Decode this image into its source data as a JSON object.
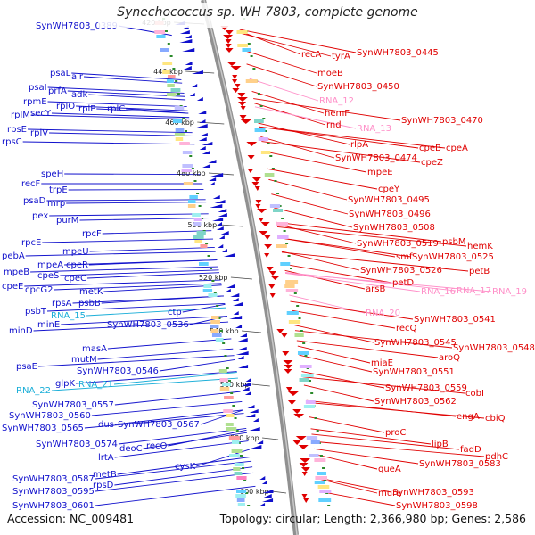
{
  "title": "Synechococcus sp. WH 7803, complete genome",
  "footer": {
    "accession": "Accession: NC_009481",
    "summary": "Topology: circular; Length: 2,366,980 bp; Genes: 2,586"
  },
  "colors": {
    "left_strand": "#1010cc",
    "right_strand": "#e00000",
    "rna": "#1aaed8",
    "rna_right": "#ff8fc8",
    "backbone": "#909090",
    "tick_marks": "#2a8a2a"
  },
  "ticks": [
    "420 kbp",
    "440 kbp",
    "460 kbp",
    "480 kbp",
    "500 kbp",
    "520 kbp",
    "540 kbp",
    "560 kbp",
    "580 kbp",
    "600 kbp"
  ],
  "left_labels": [
    {
      "text": "SynWH7803_0389",
      "kind": "gene"
    },
    {
      "text": "psaL",
      "kind": "gene"
    },
    {
      "text": "alr",
      "kind": "gene"
    },
    {
      "text": "psaI",
      "kind": "gene"
    },
    {
      "text": "prfA",
      "kind": "gene"
    },
    {
      "text": "rpmE",
      "kind": "gene"
    },
    {
      "text": "adk",
      "kind": "gene"
    },
    {
      "text": "rplM",
      "kind": "gene"
    },
    {
      "text": "secY",
      "kind": "gene"
    },
    {
      "text": "rplO",
      "kind": "gene"
    },
    {
      "text": "rpsE",
      "kind": "gene"
    },
    {
      "text": "rplP",
      "kind": "gene"
    },
    {
      "text": "rplC",
      "kind": "gene"
    },
    {
      "text": "rplV",
      "kind": "gene"
    },
    {
      "text": "rpsC",
      "kind": "gene"
    },
    {
      "text": "speH",
      "kind": "gene"
    },
    {
      "text": "recF",
      "kind": "gene"
    },
    {
      "text": "trpE",
      "kind": "gene"
    },
    {
      "text": "psaD",
      "kind": "gene"
    },
    {
      "text": "mrp",
      "kind": "gene"
    },
    {
      "text": "pex",
      "kind": "gene"
    },
    {
      "text": "purM",
      "kind": "gene"
    },
    {
      "text": "rpcF",
      "kind": "gene"
    },
    {
      "text": "rpcE",
      "kind": "gene"
    },
    {
      "text": "mpeU",
      "kind": "gene"
    },
    {
      "text": "pebA",
      "kind": "gene"
    },
    {
      "text": "mpeA",
      "kind": "gene"
    },
    {
      "text": "cpeR",
      "kind": "gene"
    },
    {
      "text": "mpeB",
      "kind": "gene"
    },
    {
      "text": "cpeS",
      "kind": "gene"
    },
    {
      "text": "cpeC",
      "kind": "gene"
    },
    {
      "text": "cpeE",
      "kind": "gene"
    },
    {
      "text": "cpcG2",
      "kind": "gene"
    },
    {
      "text": "metK",
      "kind": "gene"
    },
    {
      "text": "rpsA",
      "kind": "gene"
    },
    {
      "text": "psbB",
      "kind": "gene"
    },
    {
      "text": "psbT",
      "kind": "gene"
    },
    {
      "text": "RNA_15",
      "kind": "rna"
    },
    {
      "text": "ctp",
      "kind": "gene"
    },
    {
      "text": "minE",
      "kind": "gene"
    },
    {
      "text": "SynWH7803_0536",
      "kind": "gene"
    },
    {
      "text": "minD",
      "kind": "gene"
    },
    {
      "text": "masA",
      "kind": "gene"
    },
    {
      "text": "mutM",
      "kind": "gene"
    },
    {
      "text": "psaE",
      "kind": "gene"
    },
    {
      "text": "SynWH7803_0546",
      "kind": "gene"
    },
    {
      "text": "glpK",
      "kind": "gene"
    },
    {
      "text": "RNA_21",
      "kind": "rna"
    },
    {
      "text": "RNA_22",
      "kind": "rna"
    },
    {
      "text": "SynWH7803_0557",
      "kind": "gene"
    },
    {
      "text": "SynWH7803_0560",
      "kind": "gene"
    },
    {
      "text": "dus",
      "kind": "gene"
    },
    {
      "text": "SynWH7803_0567",
      "kind": "gene"
    },
    {
      "text": "SynWH7803_0565",
      "kind": "gene"
    },
    {
      "text": "SynWH7803_0574",
      "kind": "gene"
    },
    {
      "text": "deoC",
      "kind": "gene"
    },
    {
      "text": "recO",
      "kind": "gene"
    },
    {
      "text": "lrtA",
      "kind": "gene"
    },
    {
      "text": "cysK",
      "kind": "gene"
    },
    {
      "text": "metB",
      "kind": "gene"
    },
    {
      "text": "SynWH7803_0587",
      "kind": "gene"
    },
    {
      "text": "rpsD",
      "kind": "gene"
    },
    {
      "text": "SynWH7803_0595",
      "kind": "gene"
    },
    {
      "text": "SynWH7803_0601",
      "kind": "gene"
    }
  ],
  "right_labels": [
    {
      "text": "recA",
      "kind": "gene"
    },
    {
      "text": "tyrA",
      "kind": "gene"
    },
    {
      "text": "SynWH7803_0445",
      "kind": "gene"
    },
    {
      "text": "moeB",
      "kind": "gene"
    },
    {
      "text": "SynWH7803_0450",
      "kind": "gene"
    },
    {
      "text": "RNA_12",
      "kind": "rna"
    },
    {
      "text": "hemF",
      "kind": "gene"
    },
    {
      "text": "rnd",
      "kind": "gene"
    },
    {
      "text": "RNA_13",
      "kind": "rna"
    },
    {
      "text": "SynWH7803_0470",
      "kind": "gene"
    },
    {
      "text": "rlpA",
      "kind": "gene"
    },
    {
      "text": "cpeB",
      "kind": "gene"
    },
    {
      "text": "cpeA",
      "kind": "gene"
    },
    {
      "text": "SynWH7803_0474",
      "kind": "gene"
    },
    {
      "text": "cpeZ",
      "kind": "gene"
    },
    {
      "text": "mpeE",
      "kind": "gene"
    },
    {
      "text": "cpeY",
      "kind": "gene"
    },
    {
      "text": "SynWH7803_0495",
      "kind": "gene"
    },
    {
      "text": "SynWH7803_0496",
      "kind": "gene"
    },
    {
      "text": "SynWH7803_0508",
      "kind": "gene"
    },
    {
      "text": "SynWH7803_0519",
      "kind": "gene"
    },
    {
      "text": "psbM",
      "kind": "gene"
    },
    {
      "text": "hemK",
      "kind": "gene"
    },
    {
      "text": "smf",
      "kind": "gene"
    },
    {
      "text": "SynWH7803_0525",
      "kind": "gene"
    },
    {
      "text": "SynWH7803_0526",
      "kind": "gene"
    },
    {
      "text": "petB",
      "kind": "gene"
    },
    {
      "text": "petD",
      "kind": "gene"
    },
    {
      "text": "arsB",
      "kind": "gene"
    },
    {
      "text": "RNA_16",
      "kind": "rna"
    },
    {
      "text": "RNA_17",
      "kind": "rna"
    },
    {
      "text": "RNA_19",
      "kind": "rna"
    },
    {
      "text": "RNA_20",
      "kind": "rna"
    },
    {
      "text": "SynWH7803_0541",
      "kind": "gene"
    },
    {
      "text": "recQ",
      "kind": "gene"
    },
    {
      "text": "SynWH7803_0545",
      "kind": "gene"
    },
    {
      "text": "SynWH7803_0548",
      "kind": "gene"
    },
    {
      "text": "aroQ",
      "kind": "gene"
    },
    {
      "text": "miaE",
      "kind": "gene"
    },
    {
      "text": "SynWH7803_0551",
      "kind": "gene"
    },
    {
      "text": "SynWH7803_0559",
      "kind": "gene"
    },
    {
      "text": "cobI",
      "kind": "gene"
    },
    {
      "text": "SynWH7803_0562",
      "kind": "gene"
    },
    {
      "text": "engA",
      "kind": "gene"
    },
    {
      "text": "cbiQ",
      "kind": "gene"
    },
    {
      "text": "proC",
      "kind": "gene"
    },
    {
      "text": "lipB",
      "kind": "gene"
    },
    {
      "text": "fadD",
      "kind": "gene"
    },
    {
      "text": "pdhC",
      "kind": "gene"
    },
    {
      "text": "SynWH7803_0583",
      "kind": "gene"
    },
    {
      "text": "queA",
      "kind": "gene"
    },
    {
      "text": "SynWH7803_0593",
      "kind": "gene"
    },
    {
      "text": "murE",
      "kind": "gene"
    },
    {
      "text": "SynWH7803_0598",
      "kind": "gene"
    }
  ]
}
